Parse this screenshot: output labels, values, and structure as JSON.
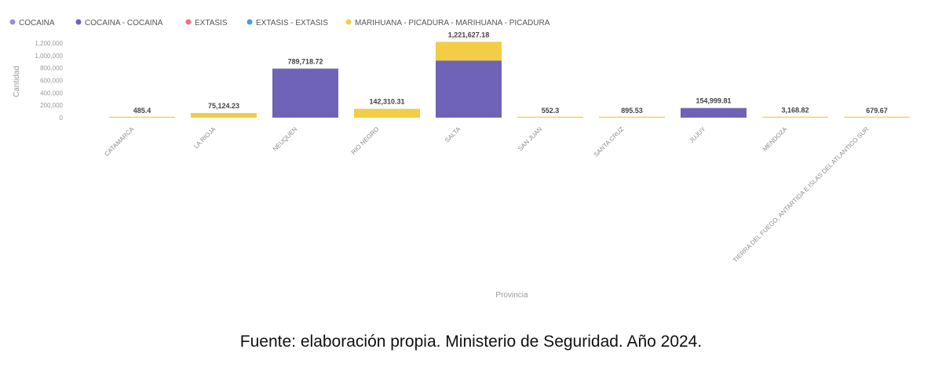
{
  "chart_data": {
    "type": "bar",
    "stacked": true,
    "xlabel": "Provincia",
    "ylabel": "Cantidad",
    "ylim": [
      0,
      1200000
    ],
    "yticks": [
      0,
      200000,
      400000,
      600000,
      800000,
      1000000,
      1200000
    ],
    "ytick_labels": [
      "0",
      "200,000",
      "400,000",
      "600,000",
      "800,000",
      "1,000,000",
      "1,200,000"
    ],
    "legend_position": "top-left",
    "grid": false,
    "categories": [
      "CATAMARCA",
      "LA RIOJA",
      "NEUQUEN",
      "RIO NEGRO",
      "SALTA",
      "SAN JUAN",
      "SANTA CRUZ",
      "JUJUY",
      "MENDOZA",
      "TIERRA DEL FUEGO, ANTARTIDA E ISLAS DEL ATLANTICO SUR"
    ],
    "totals": [
      "485.4",
      "75,124.23",
      "789,718.72",
      "142,310.31",
      "1,221,627.18",
      "552.3",
      "895.53",
      "154,999.81",
      "3,168.82",
      "679.67"
    ],
    "series": [
      {
        "name": "COCAINA",
        "color": "#9b8fd8",
        "values": [
          0,
          0,
          0,
          0,
          0,
          0,
          0,
          0,
          0,
          0
        ]
      },
      {
        "name": "COCAINA - COCAINA",
        "color": "#6f63b8",
        "values": [
          0,
          0,
          789718.72,
          0,
          920000,
          0,
          0,
          154999.81,
          0,
          0
        ]
      },
      {
        "name": "EXTASIS",
        "color": "#ef6f7f",
        "values": [
          0,
          0,
          0,
          0,
          0,
          0,
          0,
          0,
          0,
          0
        ]
      },
      {
        "name": "EXTASIS - EXTASIS",
        "color": "#4a9de0",
        "values": [
          0,
          0,
          0,
          0,
          0,
          0,
          0,
          0,
          0,
          0
        ]
      },
      {
        "name": "MARIHUANA - PICADURA - MARIHUANA - PICADURA",
        "color": "#f2cd45",
        "values": [
          485.4,
          75124.23,
          0,
          142310.31,
          301627.18,
          552.3,
          895.53,
          0,
          3168.82,
          679.67
        ]
      }
    ]
  },
  "caption": "Fuente: elaboración propia. Ministerio de Seguridad. Año 2024."
}
